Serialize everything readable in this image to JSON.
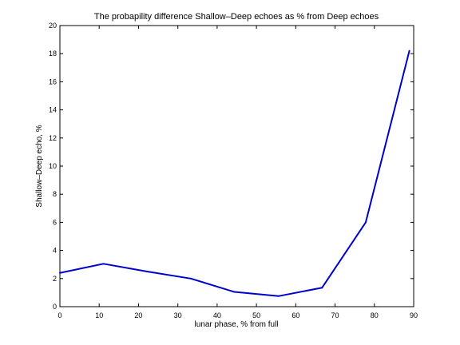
{
  "chart_data": {
    "type": "line",
    "title": "The probapility difference Shallow–Deep echoes as % from Deep echoes",
    "xlabel": "lunar phase, % from full",
    "ylabel": "Shallow–Deep echo, %",
    "xlim": [
      0,
      90
    ],
    "ylim": [
      0,
      20
    ],
    "xticks": [
      0,
      10,
      20,
      30,
      40,
      50,
      60,
      70,
      80,
      90
    ],
    "yticks": [
      0,
      2,
      4,
      6,
      8,
      10,
      12,
      14,
      16,
      18,
      20
    ],
    "grid": false,
    "series": [
      {
        "color": "#0000cc",
        "x": [
          0,
          11.1,
          22.2,
          33.3,
          44.4,
          55.6,
          66.7,
          77.8,
          88.9
        ],
        "y": [
          2.4,
          3.05,
          2.5,
          2.0,
          1.05,
          0.75,
          1.35,
          6.0,
          18.2
        ]
      }
    ]
  }
}
